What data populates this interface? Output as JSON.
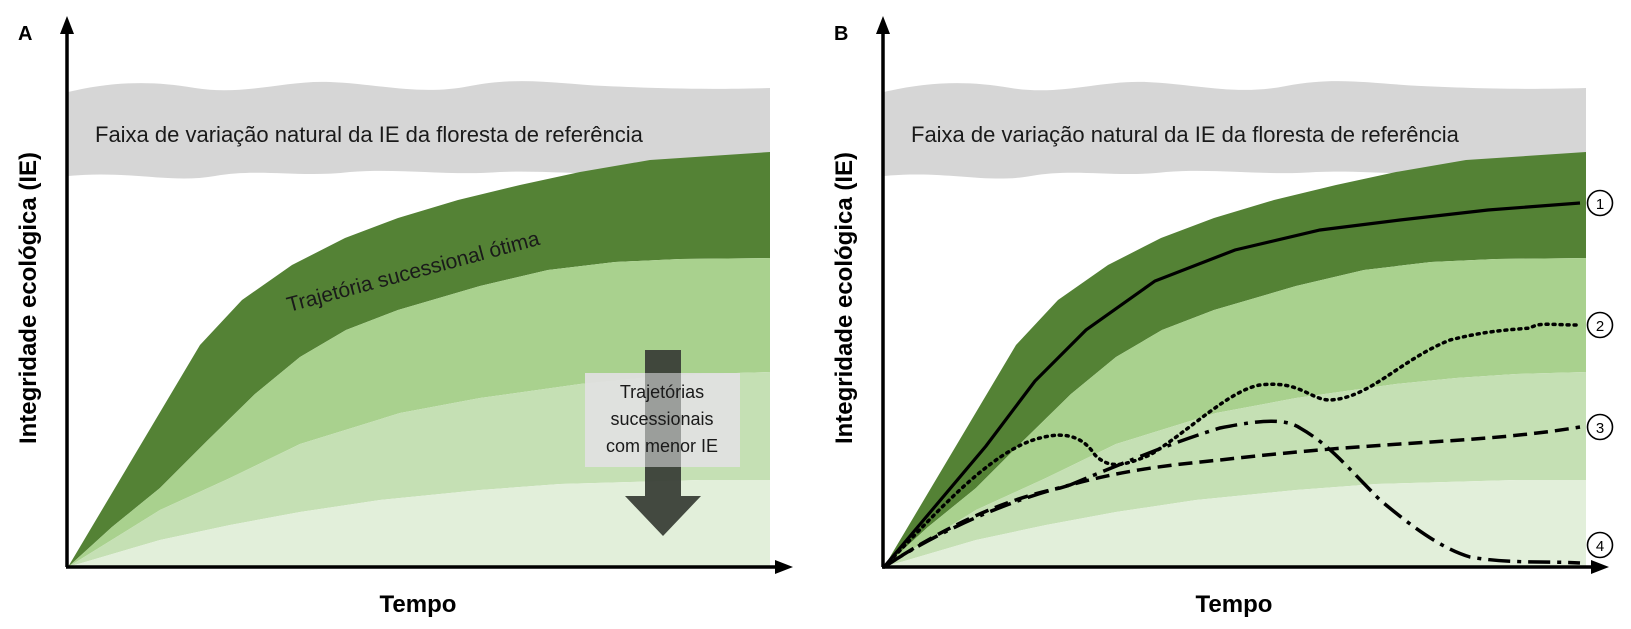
{
  "panels": [
    {
      "letter": "A",
      "ylabel": "Integridade ecológica (IE)",
      "xlabel": "Tempo",
      "reference_band_label": "Faixa de variação natural da IE da floresta de referência",
      "optimal_label": "Trajetória sucessional ótima",
      "lower_box_lines": [
        "Trajetórias",
        "sucessionais",
        "com menor IE"
      ]
    },
    {
      "letter": "B",
      "ylabel": "Integridade ecológica (IE)",
      "xlabel": "Tempo",
      "reference_band_label": "Faixa de variação natural da IE da floresta de referência",
      "markers": [
        "1",
        "2",
        "3",
        "4"
      ]
    }
  ],
  "colors": {
    "reference_band": "#d6d6d6",
    "band_dark": "#548235",
    "band_mid": "#a9d18e",
    "band_light": "#c5e0b4",
    "band_lightest": "#e2efda",
    "arrow": "#3a3f38",
    "box": "#d9d9d9",
    "axis": "#000000"
  },
  "legend_line_styles": [
    "solid",
    "dotted",
    "dashed",
    "dash-dot"
  ]
}
